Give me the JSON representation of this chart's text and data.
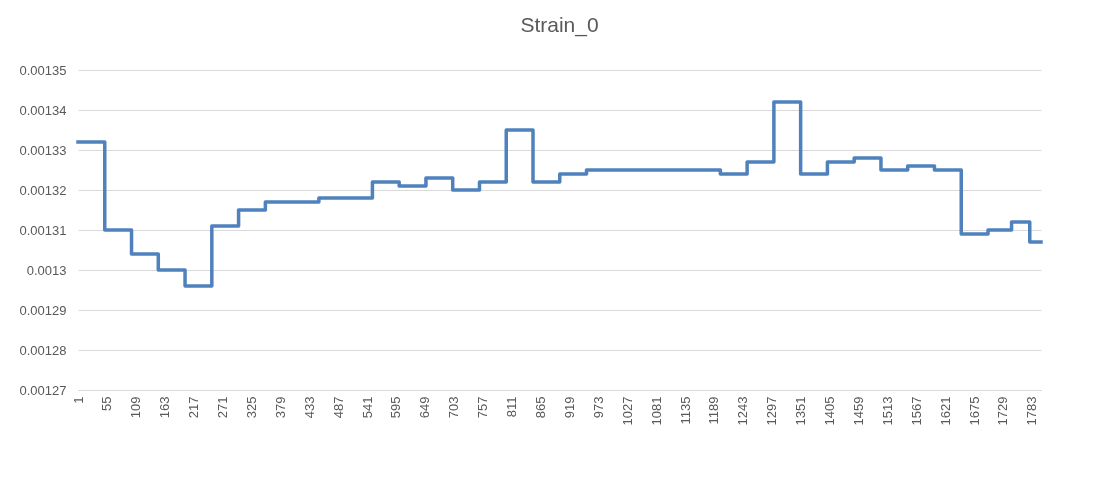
{
  "chart_data": {
    "type": "step",
    "title": "Strain_0",
    "x": [
      1,
      51,
      101,
      151,
      201,
      251,
      301,
      351,
      451,
      551,
      601,
      651,
      701,
      751,
      801,
      851,
      901,
      951,
      1201,
      1251,
      1301,
      1351,
      1401,
      1451,
      1501,
      1551,
      1601,
      1651,
      1701,
      1745,
      1779,
      1800
    ],
    "series": [
      {
        "color": "#4f81bd",
        "values": [
          0.001332,
          0.00131,
          0.001304,
          0.0013,
          0.001296,
          0.001311,
          0.001315,
          0.001317,
          0.001318,
          0.001322,
          0.001321,
          0.001323,
          0.00132,
          0.001322,
          0.001335,
          0.001322,
          0.001324,
          0.001325,
          0.001324,
          0.001327,
          0.001342,
          0.001324,
          0.001327,
          0.001328,
          0.001325,
          0.001326,
          0.001325,
          0.001309,
          0.00131,
          0.001312,
          0.001307,
          0.001307
        ]
      }
    ],
    "xlim": [
      1,
      1800
    ],
    "xticks": [
      1,
      55,
      109,
      163,
      217,
      271,
      325,
      379,
      433,
      487,
      541,
      595,
      649,
      703,
      757,
      811,
      865,
      919,
      973,
      1027,
      1081,
      1135,
      1189,
      1243,
      1297,
      1351,
      1405,
      1459,
      1513,
      1567,
      1621,
      1675,
      1729,
      1783
    ],
    "ylim": [
      0.00127,
      0.00135
    ],
    "yticks": [
      0.00127,
      0.00128,
      0.00129,
      0.0013,
      0.00131,
      0.00132,
      0.00133,
      0.00134,
      0.00135
    ],
    "grid": "y"
  }
}
